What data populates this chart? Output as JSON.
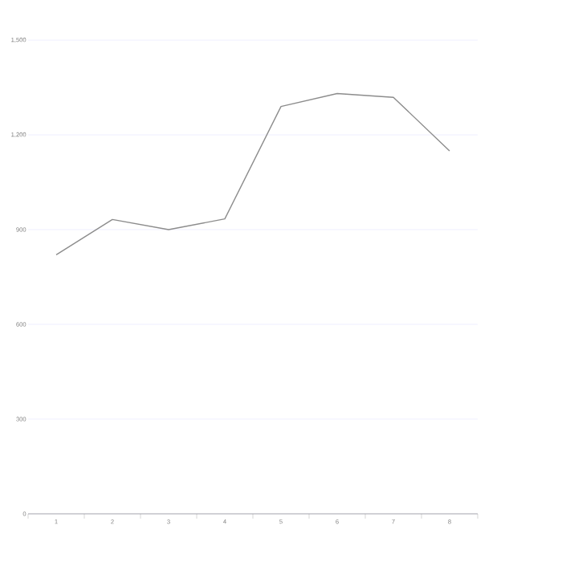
{
  "chart_data": {
    "type": "line",
    "categories": [
      "1",
      "2",
      "3",
      "4",
      "5",
      "6",
      "7",
      "8"
    ],
    "series": [
      {
        "color": "#8c8c8c",
        "values": [
          820,
          932,
          900,
          934,
          1290,
          1331,
          1319,
          1149
        ]
      }
    ],
    "ylim": [
      0,
      1500
    ],
    "yticks": [
      {
        "value": 0,
        "label": "0"
      },
      {
        "value": 300,
        "label": "300"
      },
      {
        "value": 600,
        "label": "600"
      },
      {
        "value": 900,
        "label": "900"
      },
      {
        "value": 1200,
        "label": "1,200"
      },
      {
        "value": 1500,
        "label": "1,500"
      }
    ],
    "grid": "y",
    "marker": "none",
    "line_style": "solid"
  }
}
